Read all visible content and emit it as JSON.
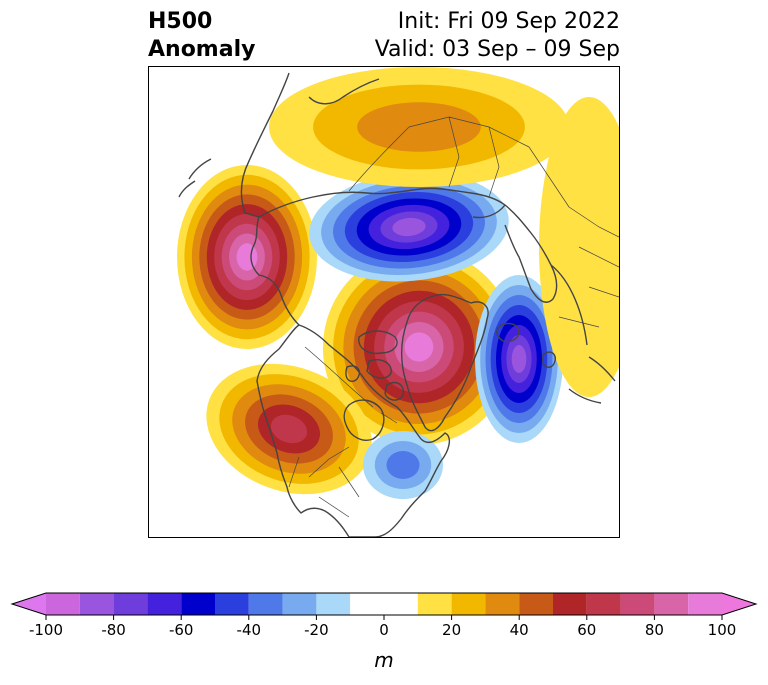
{
  "title": {
    "variable": "H500",
    "kind": "Anomaly",
    "init": "Init: Fri 09 Sep 2022",
    "valid": "Valid: 03 Sep – 09 Sep"
  },
  "colorbar": {
    "unit": "m",
    "ticks": [
      "-100",
      "-80",
      "-60",
      "-40",
      "-20",
      "0",
      "20",
      "40",
      "60",
      "80",
      "100"
    ],
    "bounds": [
      -100,
      -90,
      -80,
      -70,
      -60,
      -50,
      -40,
      -30,
      -20,
      -10,
      10,
      20,
      30,
      40,
      50,
      60,
      70,
      80,
      90,
      100
    ],
    "colors": [
      "#cc66dd",
      "#9955dd",
      "#6e3ddb",
      "#4422dd",
      "#0000cc",
      "#2a3fdd",
      "#4f78e8",
      "#78aaf0",
      "#a9d8f8",
      "#ffffff",
      "#ffe144",
      "#f2b800",
      "#e08a10",
      "#c85a18",
      "#b02528",
      "#c0364a",
      "#cc4a78",
      "#d865a8",
      "#e87ad9"
    ],
    "under_color": "#dd77ee",
    "over_color": "#ee77dd"
  },
  "anomalies": [
    {
      "name": "north-pacific-high",
      "sign": "positive",
      "peak": 100
    },
    {
      "name": "greenland-arctic-high",
      "sign": "positive",
      "peak": 100
    },
    {
      "name": "northeast-pacific-high",
      "sign": "positive",
      "peak": 70
    },
    {
      "name": "siberia-low",
      "sign": "negative",
      "peak": -90
    },
    {
      "name": "north-atlantic-low",
      "sign": "negative",
      "peak": -90
    },
    {
      "name": "eastern-us-low",
      "sign": "negative",
      "peak": -40
    },
    {
      "name": "russia-high",
      "sign": "positive",
      "peak": 40
    },
    {
      "name": "europe-high",
      "sign": "positive",
      "peak": 20
    }
  ]
}
